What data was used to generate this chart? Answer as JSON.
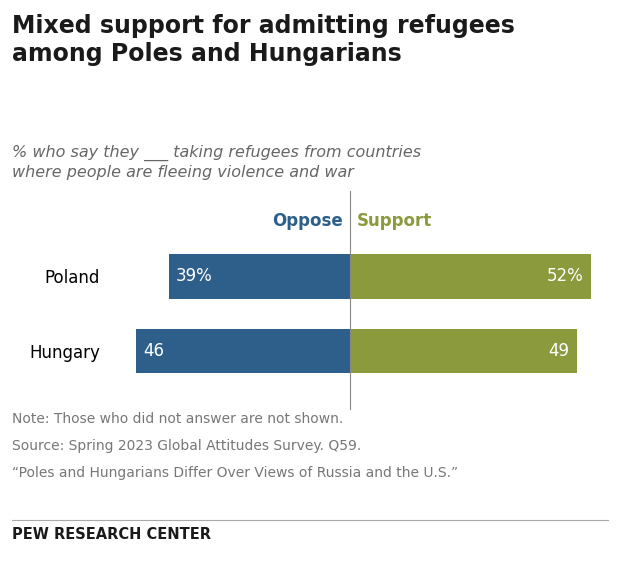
{
  "title": "Mixed support for admitting refugees\namong Poles and Hungarians",
  "subtitle": "% who say they ___ taking refugees from countries\nwhere people are fleeing violence and war",
  "categories": [
    "Poland",
    "Hungary"
  ],
  "oppose_values": [
    39,
    46
  ],
  "support_values": [
    52,
    49
  ],
  "oppose_labels": [
    "39%",
    "46"
  ],
  "support_labels": [
    "52%",
    "49"
  ],
  "oppose_color": "#2E5F8A",
  "support_color": "#8A9A3C",
  "oppose_header_color": "#2E5F8A",
  "support_header_color": "#8A9A3C",
  "bar_text_color": "#ffffff",
  "note_lines": [
    "Note: Those who did not answer are not shown.",
    "Source: Spring 2023 Global Attitudes Survey. Q59.",
    "“Poles and Hungarians Differ Over Views of Russia and the U.S.”"
  ],
  "footer": "PEW RESEARCH CENTER",
  "title_fontsize": 17,
  "subtitle_fontsize": 11.5,
  "header_fontsize": 12,
  "bar_text_fontsize": 12,
  "ylabel_fontsize": 12,
  "note_fontsize": 10,
  "footer_fontsize": 10.5
}
